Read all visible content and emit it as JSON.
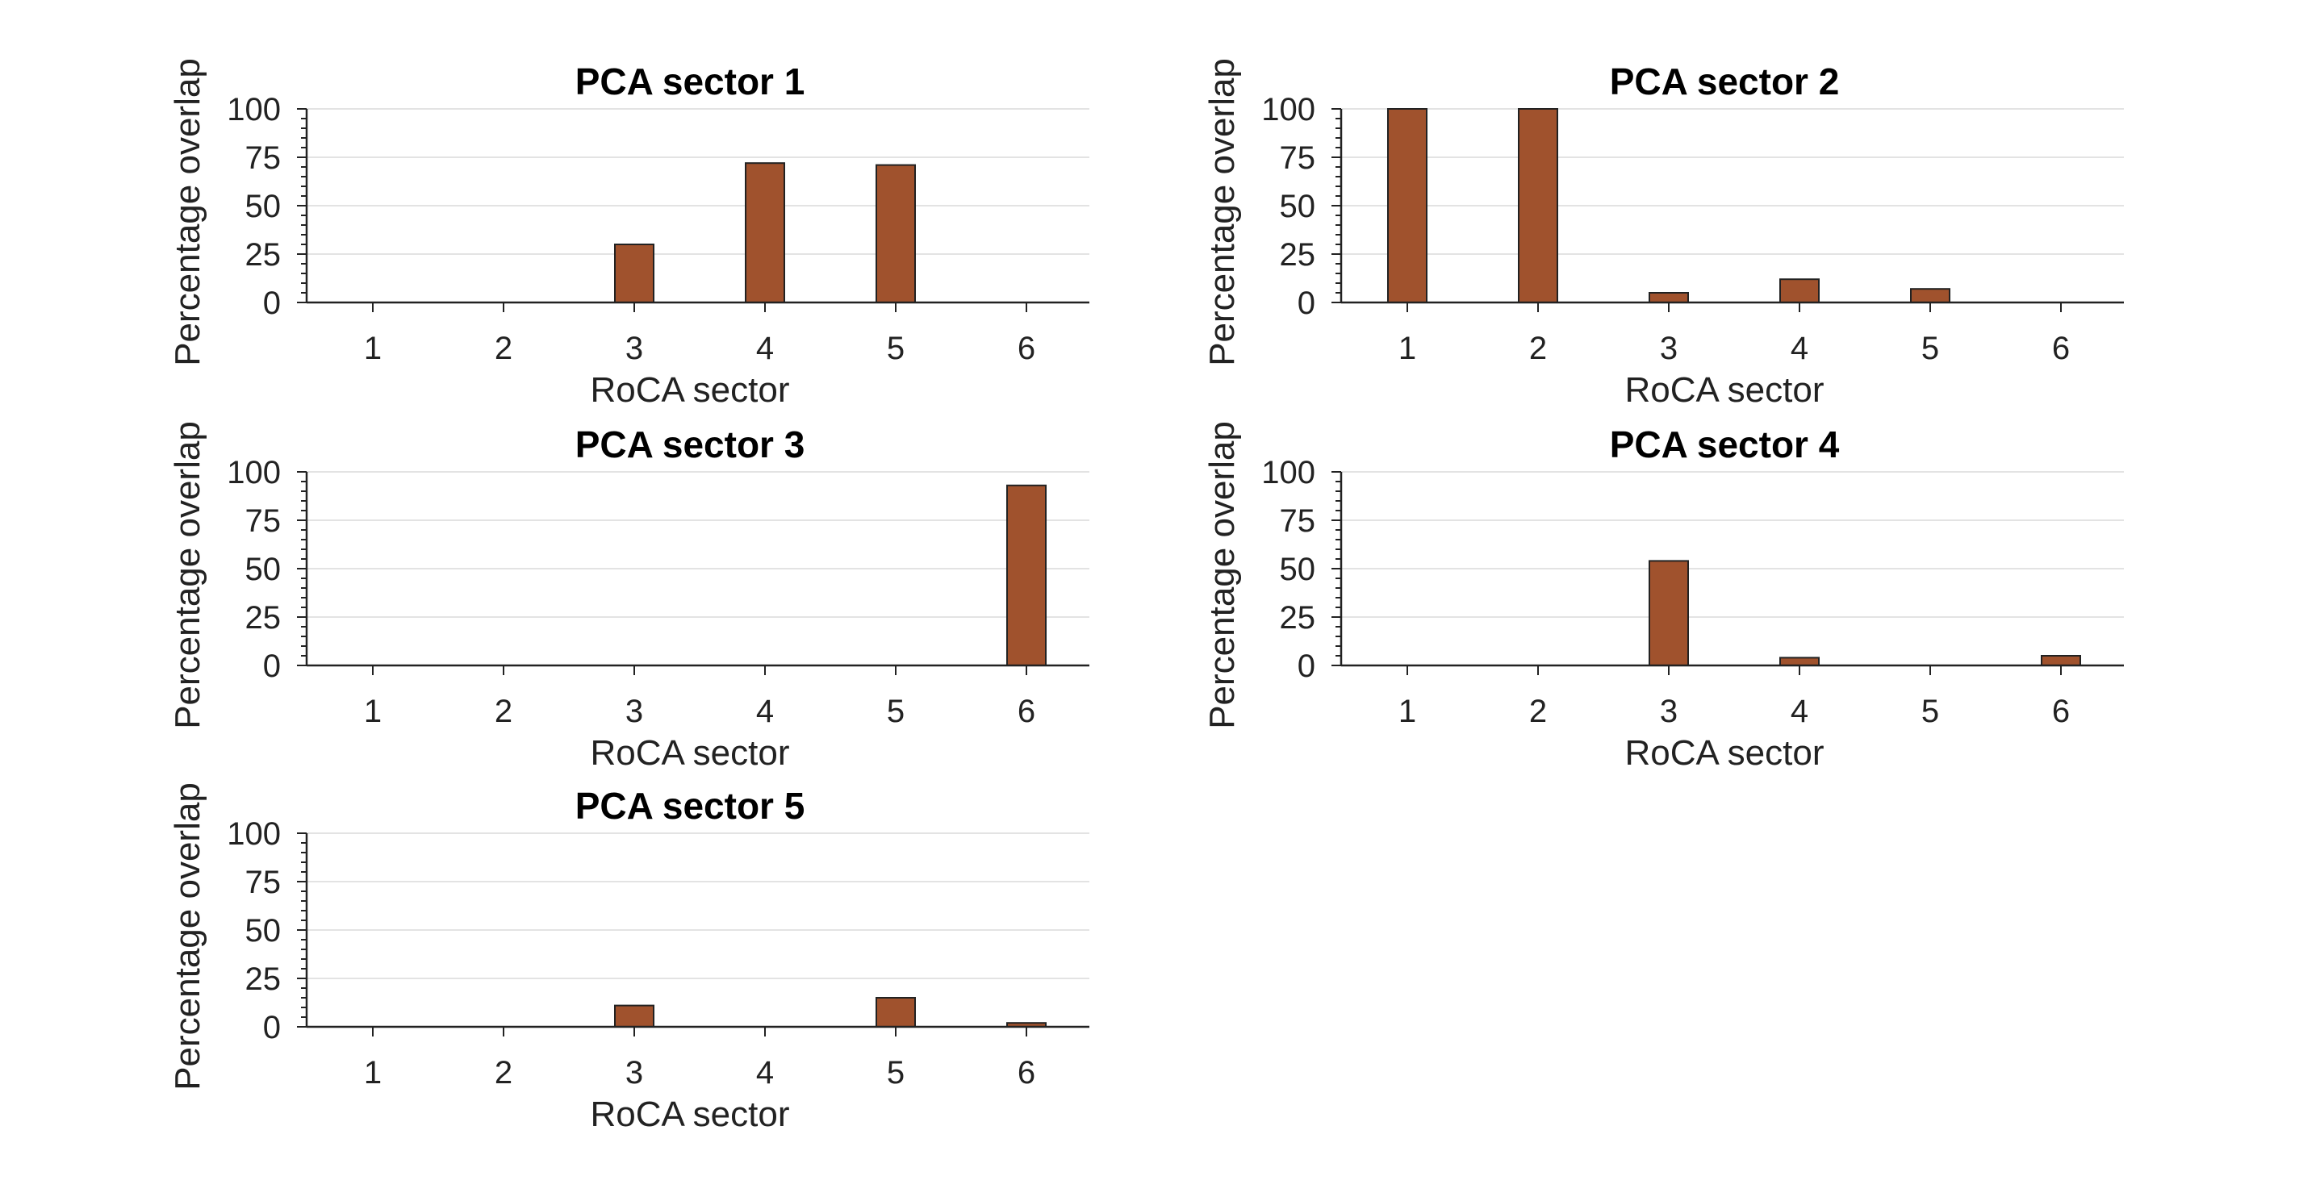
{
  "colors": {
    "bar": "#a0522d",
    "axis": "#222222",
    "grid": "#e3e3e3",
    "background": "#ffffff"
  },
  "chart_data": [
    {
      "type": "bar",
      "title": "PCA sector 1",
      "xlabel": "RoCA sector",
      "ylabel": "Percentage overlap",
      "categories": [
        "1",
        "2",
        "3",
        "4",
        "5",
        "6"
      ],
      "values": [
        0,
        0,
        30,
        72,
        71,
        0
      ],
      "ylim": [
        0,
        100
      ],
      "yticks": [
        "0",
        "25",
        "50",
        "75",
        "100"
      ],
      "grid": true
    },
    {
      "type": "bar",
      "title": "PCA sector 2",
      "xlabel": "RoCA sector",
      "ylabel": "Percentage overlap",
      "categories": [
        "1",
        "2",
        "3",
        "4",
        "5",
        "6"
      ],
      "values": [
        100,
        100,
        5,
        12,
        7,
        0
      ],
      "ylim": [
        0,
        100
      ],
      "yticks": [
        "0",
        "25",
        "50",
        "75",
        "100"
      ],
      "grid": true
    },
    {
      "type": "bar",
      "title": "PCA sector 3",
      "xlabel": "RoCA sector",
      "ylabel": "Percentage overlap",
      "categories": [
        "1",
        "2",
        "3",
        "4",
        "5",
        "6"
      ],
      "values": [
        0,
        0,
        0,
        0,
        0,
        93
      ],
      "ylim": [
        0,
        100
      ],
      "yticks": [
        "0",
        "25",
        "50",
        "75",
        "100"
      ],
      "grid": true
    },
    {
      "type": "bar",
      "title": "PCA sector 4",
      "xlabel": "RoCA sector",
      "ylabel": "Percentage overlap",
      "categories": [
        "1",
        "2",
        "3",
        "4",
        "5",
        "6"
      ],
      "values": [
        0,
        0,
        54,
        4,
        0,
        5
      ],
      "ylim": [
        0,
        100
      ],
      "yticks": [
        "0",
        "25",
        "50",
        "75",
        "100"
      ],
      "grid": true
    },
    {
      "type": "bar",
      "title": "PCA sector 5",
      "xlabel": "RoCA sector",
      "ylabel": "Percentage overlap",
      "categories": [
        "1",
        "2",
        "3",
        "4",
        "5",
        "6"
      ],
      "values": [
        0,
        0,
        11,
        0,
        15,
        2
      ],
      "ylim": [
        0,
        100
      ],
      "yticks": [
        "0",
        "25",
        "50",
        "75",
        "100"
      ],
      "grid": true
    }
  ]
}
